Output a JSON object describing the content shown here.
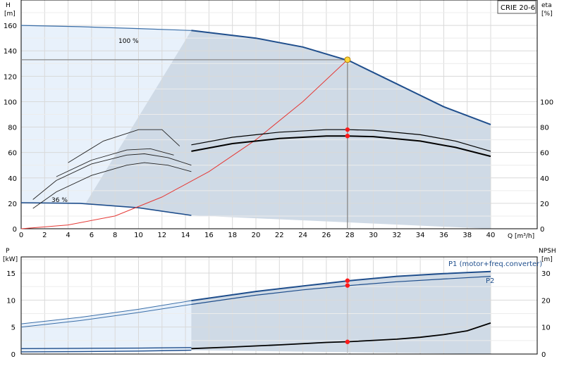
{
  "model_label": "CRIE 20-6",
  "chart_data": [
    {
      "type": "line",
      "name": "head-efficiency",
      "xlabel": "Q [m³/h]",
      "ylabel": "H",
      "ylabel_unit": "[m]",
      "y2label": "eta",
      "y2label_unit": "[%]",
      "xlim": [
        0,
        40
      ],
      "ylim": [
        0,
        180
      ],
      "y2lim": [
        0,
        180
      ],
      "x_ticks": [
        0,
        2,
        4,
        6,
        8,
        10,
        12,
        14,
        16,
        18,
        20,
        22,
        24,
        26,
        28,
        30,
        32,
        34,
        36,
        38,
        40
      ],
      "y_ticks": [
        0,
        20,
        40,
        60,
        80,
        100,
        120,
        140,
        160
      ],
      "y2_ticks": [
        0,
        20,
        40,
        60,
        80,
        100
      ],
      "grid": true,
      "annotations": {
        "max_speed": "100 %",
        "min_speed": "36 %"
      },
      "duty_point": {
        "x": 27.8,
        "head": 133,
        "eta_total": 73,
        "eta_pump": 78
      },
      "series": [
        {
          "id": "head_100",
          "x": [
            0,
            5,
            10,
            14.5,
            20,
            24,
            28,
            32,
            36,
            40
          ],
          "y": [
            160,
            159,
            157.5,
            156,
            150,
            143,
            132,
            114,
            96,
            82
          ]
        },
        {
          "id": "head_36",
          "x": [
            0,
            5,
            10,
            14.5
          ],
          "y": [
            20.5,
            20,
            16.5,
            10.5
          ]
        },
        {
          "id": "system_curve",
          "x": [
            0,
            4,
            8,
            12,
            16,
            20,
            24,
            27.8
          ],
          "y": [
            0,
            3,
            10,
            25,
            45,
            70,
            100,
            133
          ]
        },
        {
          "id": "eta_pump_100",
          "x": [
            14.5,
            18,
            22,
            26,
            27.8,
            30,
            34,
            37,
            40
          ],
          "y": [
            66,
            72,
            76,
            78,
            78,
            77.5,
            74,
            69,
            61
          ]
        },
        {
          "id": "eta_total_100",
          "x": [
            14.5,
            18,
            22,
            26,
            27.8,
            30,
            34,
            37,
            40
          ],
          "y": [
            61,
            67,
            71,
            73,
            73,
            72.5,
            69,
            64,
            57
          ]
        },
        {
          "id": "eta_pump_36",
          "x": [
            1,
            3,
            6,
            9,
            10.5,
            12.5,
            14.5
          ],
          "y": [
            23,
            38,
            51,
            58,
            59,
            56,
            50
          ]
        },
        {
          "id": "eta_total_36",
          "x": [
            1,
            3,
            6,
            9,
            10.5,
            12.5,
            14.5
          ],
          "y": [
            16,
            29,
            42,
            50,
            52,
            50,
            45
          ]
        },
        {
          "id": "eta_pump_mid",
          "x": [
            4,
            7,
            10,
            12,
            13.5
          ],
          "y": [
            52,
            69,
            78,
            78,
            65
          ]
        },
        {
          "id": "eta_total_mid",
          "x": [
            3,
            6,
            9,
            11,
            13
          ],
          "y": [
            41,
            54,
            62,
            63,
            58
          ]
        }
      ]
    },
    {
      "type": "line",
      "name": "power-npsh",
      "ylabel": "P",
      "ylabel_unit": "[kW]",
      "y2label": "NPSH",
      "y2label_unit": "[m]",
      "xlim": [
        0,
        40
      ],
      "ylim": [
        0,
        18
      ],
      "y2lim": [
        0,
        36
      ],
      "y_ticks": [
        0,
        5,
        10,
        15
      ],
      "y2_ticks": [
        0,
        10,
        20,
        30
      ],
      "grid": true,
      "duty_point": {
        "x": 27.8,
        "p1": 13.6,
        "p2": 12.7,
        "npsh": 4.5
      },
      "series": [
        {
          "name": "P1 (motor+freq.converter)",
          "x": [
            0,
            5,
            10,
            14.5,
            20,
            24,
            28,
            32,
            36,
            40
          ],
          "y": [
            5.6,
            6.8,
            8.3,
            9.9,
            11.6,
            12.6,
            13.6,
            14.4,
            14.9,
            15.3
          ]
        },
        {
          "name": "P2",
          "x": [
            0,
            5,
            10,
            14.5,
            20,
            24,
            28,
            32,
            36,
            40
          ],
          "y": [
            5.0,
            6.2,
            7.7,
            9.2,
            10.9,
            11.9,
            12.7,
            13.4,
            13.9,
            14.4
          ]
        },
        {
          "id": "npsh",
          "x": [
            14.5,
            18,
            22,
            26,
            28,
            32,
            34,
            36,
            38,
            40
          ],
          "y": [
            2.0,
            2.6,
            3.4,
            4.3,
            4.6,
            5.5,
            6.2,
            7.2,
            8.6,
            11.5
          ]
        },
        {
          "id": "p1_min_speed",
          "x": [
            0,
            5,
            10,
            14.5
          ],
          "y": [
            1.0,
            1.05,
            1.1,
            1.2
          ]
        },
        {
          "id": "p2_min_speed",
          "x": [
            0,
            5,
            10,
            14.5
          ],
          "y": [
            0.4,
            0.45,
            0.55,
            0.7
          ]
        }
      ]
    }
  ]
}
